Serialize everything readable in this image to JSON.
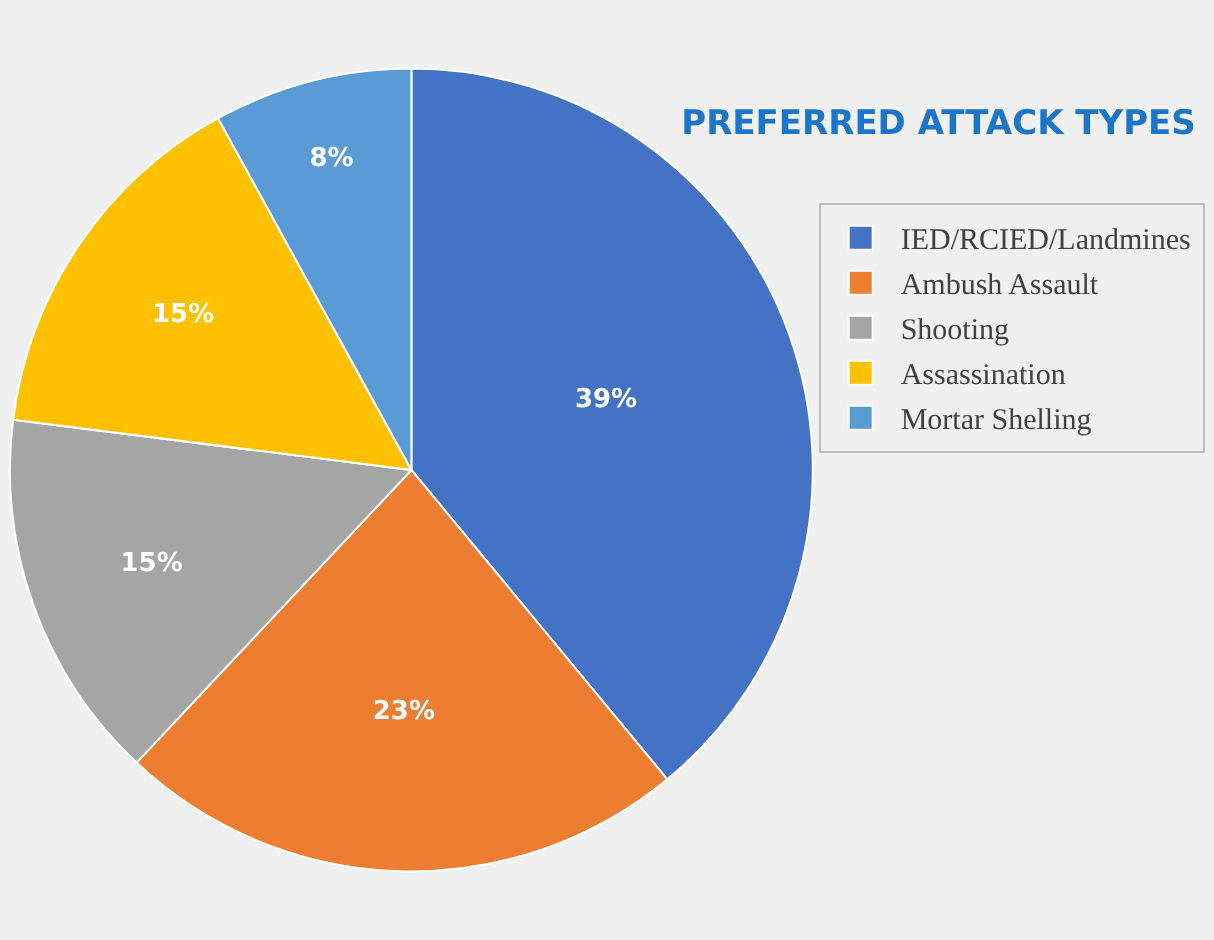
{
  "chart_data": {
    "type": "pie",
    "title": "PREFERRED ATTACK TYPES",
    "categories": [
      "IED/RCIED/Landmines",
      "Ambush Assault",
      "Shooting",
      "Assassination",
      "Mortar Shelling"
    ],
    "values": [
      39,
      23,
      15,
      15,
      8
    ],
    "colors": [
      "#4472c4",
      "#ed7d31",
      "#a5a5a5",
      "#ffc000",
      "#5b9bd5"
    ],
    "value_labels": [
      "39%",
      "23%",
      "15%",
      "15%",
      "8%"
    ],
    "legend": "right"
  }
}
